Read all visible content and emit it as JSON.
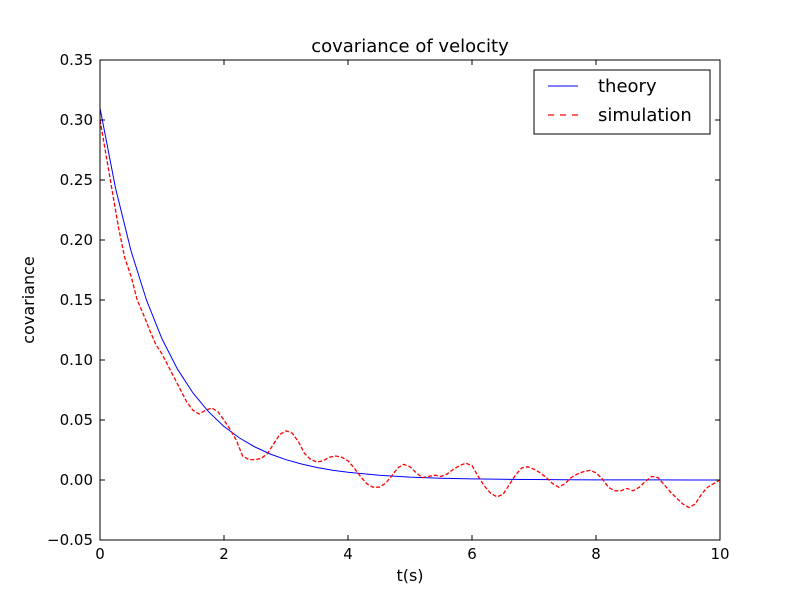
{
  "chart_data": {
    "type": "line",
    "title": "covariance of velocity",
    "xlabel": "t(s)",
    "ylabel": "covariance",
    "xlim": [
      0,
      10
    ],
    "ylim": [
      -0.05,
      0.35
    ],
    "xticks": [
      0,
      2,
      4,
      6,
      8,
      10
    ],
    "xtick_labels": [
      "0",
      "2",
      "4",
      "6",
      "8",
      "10"
    ],
    "yticks": [
      -0.05,
      0.0,
      0.05,
      0.1,
      0.15,
      0.2,
      0.25,
      0.3,
      0.35
    ],
    "ytick_labels": [
      "−0.05",
      "0.00",
      "0.05",
      "0.10",
      "0.15",
      "0.20",
      "0.25",
      "0.30",
      "0.35"
    ],
    "grid": false,
    "legend_position": "top-right",
    "series": [
      {
        "name": "theory",
        "color": "#0000ff",
        "style": "solid",
        "x": [
          0.0,
          0.25,
          0.5,
          0.75,
          1.0,
          1.25,
          1.5,
          1.75,
          2.0,
          2.25,
          2.5,
          2.75,
          3.0,
          3.25,
          3.5,
          3.75,
          4.0,
          4.5,
          5.0,
          5.5,
          6.0,
          6.5,
          7.0,
          7.5,
          8.0,
          8.5,
          9.0,
          9.5,
          10.0
        ],
        "y": [
          0.31,
          0.2433,
          0.191,
          0.1499,
          0.1176,
          0.0923,
          0.0725,
          0.0569,
          0.0446,
          0.035,
          0.0275,
          0.0216,
          0.0169,
          0.0133,
          0.0104,
          0.0082,
          0.0064,
          0.004,
          0.0024,
          0.0015,
          0.0009,
          0.0006,
          0.0004,
          0.0002,
          0.0001,
          0.0001,
          0.0001,
          0.0,
          0.0
        ]
      },
      {
        "name": "simulation",
        "color": "#ff0000",
        "style": "dashed",
        "x": [
          0.0,
          0.1,
          0.2,
          0.3,
          0.4,
          0.5,
          0.6,
          0.7,
          0.8,
          0.9,
          1.0,
          1.1,
          1.2,
          1.3,
          1.4,
          1.5,
          1.6,
          1.7,
          1.8,
          1.9,
          2.0,
          2.1,
          2.2,
          2.3,
          2.4,
          2.5,
          2.6,
          2.7,
          2.8,
          2.9,
          3.0,
          3.1,
          3.2,
          3.3,
          3.4,
          3.5,
          3.6,
          3.7,
          3.8,
          3.9,
          4.0,
          4.1,
          4.2,
          4.3,
          4.4,
          4.5,
          4.6,
          4.7,
          4.8,
          4.9,
          5.0,
          5.1,
          5.2,
          5.3,
          5.4,
          5.5,
          5.6,
          5.7,
          5.8,
          5.9,
          6.0,
          6.1,
          6.2,
          6.3,
          6.4,
          6.5,
          6.6,
          6.7,
          6.8,
          6.9,
          7.0,
          7.1,
          7.2,
          7.3,
          7.4,
          7.5,
          7.6,
          7.7,
          7.8,
          7.9,
          8.0,
          8.1,
          8.2,
          8.3,
          8.4,
          8.5,
          8.6,
          8.7,
          8.8,
          8.9,
          9.0,
          9.1,
          9.2,
          9.3,
          9.4,
          9.5,
          9.6,
          9.7,
          9.8,
          9.9,
          10.0
        ],
        "y": [
          0.3,
          0.27,
          0.24,
          0.21,
          0.185,
          0.17,
          0.15,
          0.138,
          0.125,
          0.113,
          0.105,
          0.095,
          0.085,
          0.075,
          0.065,
          0.058,
          0.055,
          0.058,
          0.06,
          0.057,
          0.05,
          0.042,
          0.033,
          0.02,
          0.017,
          0.017,
          0.018,
          0.022,
          0.03,
          0.038,
          0.041,
          0.039,
          0.032,
          0.022,
          0.017,
          0.015,
          0.016,
          0.019,
          0.02,
          0.019,
          0.016,
          0.01,
          0.003,
          -0.003,
          -0.006,
          -0.006,
          -0.003,
          0.003,
          0.01,
          0.013,
          0.011,
          0.006,
          0.002,
          0.003,
          0.004,
          0.003,
          0.005,
          0.009,
          0.012,
          0.014,
          0.012,
          0.003,
          -0.005,
          -0.011,
          -0.014,
          -0.012,
          -0.004,
          0.004,
          0.01,
          0.011,
          0.009,
          0.006,
          0.002,
          -0.003,
          -0.006,
          -0.003,
          0.002,
          0.005,
          0.007,
          0.008,
          0.006,
          0.001,
          -0.006,
          -0.009,
          -0.009,
          -0.007,
          -0.009,
          -0.006,
          -0.001,
          0.003,
          0.002,
          -0.004,
          -0.01,
          -0.015,
          -0.02,
          -0.023,
          -0.02,
          -0.012,
          -0.006,
          -0.003,
          0.0
        ]
      }
    ]
  }
}
